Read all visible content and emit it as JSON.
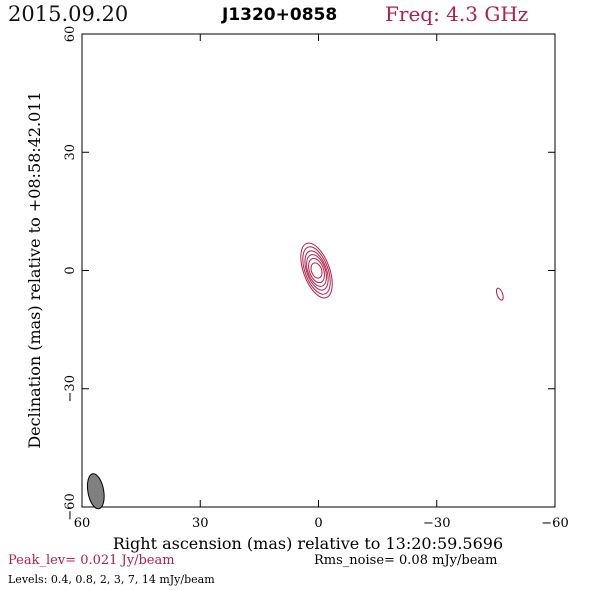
{
  "header": {
    "date": "2015.09.20",
    "source": "J1320+0858",
    "freq": "Freq: 4.3 GHz"
  },
  "colors": {
    "contour": "#b0204a",
    "accent": "#b0204a",
    "beam_fill": "#808080",
    "axis": "#000000"
  },
  "chart_data": {
    "type": "contour",
    "xlabel": "Right ascension (mas) relative to 13:20:59.5696",
    "ylabel": "Declination (mas) relative to +08:58:42.011",
    "xlim": [
      60,
      -60
    ],
    "ylim": [
      -60,
      60
    ],
    "x_ticks": [
      60,
      30,
      0,
      -30,
      -60
    ],
    "y_ticks": [
      -60,
      -30,
      0,
      30,
      60
    ],
    "x_tick_labels": [
      "60",
      "30",
      "0",
      "−30",
      "−60"
    ],
    "y_tick_labels": [
      "−60",
      "−30",
      "0",
      "30",
      "60"
    ],
    "components": [
      {
        "center": [
          0.5,
          0
        ],
        "pa_deg": 20,
        "contours": [
          {
            "a": 1.3,
            "b": 2.0
          },
          {
            "a": 1.8,
            "b": 3.2
          },
          {
            "a": 2.2,
            "b": 4.2
          },
          {
            "a": 2.5,
            "b": 5.2
          },
          {
            "a": 2.9,
            "b": 6.3
          },
          {
            "a": 3.3,
            "b": 7.3
          }
        ]
      },
      {
        "center": [
          -46,
          -6
        ],
        "pa_deg": 20,
        "contours": [
          {
            "a": 0.7,
            "b": 1.6
          }
        ]
      }
    ],
    "beam": {
      "center": [
        56.5,
        -56
      ],
      "a": 2.0,
      "b": 4.5,
      "pa_deg": 10
    }
  },
  "footer": {
    "peak": "Peak_lev=  0.021 Jy/beam",
    "rms": "Rms_noise= 0.08 mJy/beam",
    "levels": "Levels: 0.4, 0.8,    2,    3,    7,   14 mJy/beam"
  }
}
